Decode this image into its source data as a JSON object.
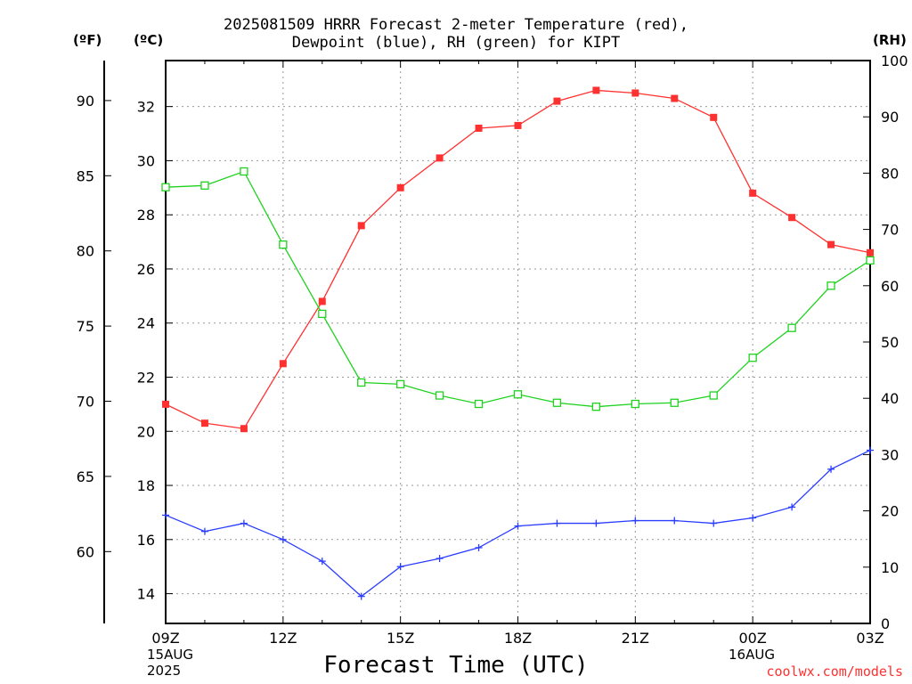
{
  "title_line1": "2025081509 HRRR Forecast 2-meter Temperature (red),",
  "title_line2": "Dewpoint (blue), RH (green) for KIPT",
  "units": {
    "fahrenheit": "(ºF)",
    "celsius": "(ºC)",
    "rh": "(RH)"
  },
  "x_date_labels": {
    "start_day": "15AUG",
    "start_year": "2025",
    "next_day": "16AUG"
  },
  "xlabel": "Forecast Time (UTC)",
  "credit": "coolwx.com/models",
  "colors": {
    "temperature": "#ff3030",
    "dewpoint": "#2a3cff",
    "rh": "#1ed21e",
    "grid": "#999999"
  },
  "chart_data": {
    "type": "line",
    "x": [
      "09Z",
      "10Z",
      "11Z",
      "12Z",
      "13Z",
      "14Z",
      "15Z",
      "16Z",
      "17Z",
      "18Z",
      "19Z",
      "20Z",
      "21Z",
      "22Z",
      "23Z",
      "00Z",
      "01Z",
      "02Z",
      "03Z"
    ],
    "x_tick_labels": [
      "09Z",
      "12Z",
      "15Z",
      "18Z",
      "21Z",
      "00Z",
      "03Z"
    ],
    "left_axis_celsius": {
      "ylim": [
        12.9,
        33.7
      ],
      "ticks": [
        14,
        16,
        18,
        20,
        22,
        24,
        26,
        28,
        30,
        32
      ]
    },
    "outer_axis_fahrenheit": {
      "ticks": [
        60,
        65,
        70,
        75,
        80,
        85,
        90
      ]
    },
    "right_axis_rh": {
      "ylim": [
        0,
        100
      ],
      "ticks": [
        0,
        10,
        20,
        30,
        40,
        50,
        60,
        70,
        80,
        90,
        100
      ]
    },
    "series": [
      {
        "name": "Temperature",
        "axis": "celsius",
        "marker": "filled-square",
        "values": [
          21.0,
          20.3,
          20.1,
          22.5,
          24.8,
          27.6,
          29.0,
          30.1,
          31.2,
          31.3,
          32.2,
          32.6,
          32.5,
          32.3,
          31.6,
          28.8,
          27.9,
          26.9,
          26.6
        ]
      },
      {
        "name": "Dewpoint",
        "axis": "celsius",
        "marker": "plus",
        "values": [
          16.9,
          16.3,
          16.6,
          16.0,
          15.2,
          13.9,
          15.0,
          15.3,
          15.7,
          16.5,
          16.6,
          16.6,
          16.7,
          16.7,
          16.6,
          16.8,
          17.2,
          18.6,
          19.3
        ]
      },
      {
        "name": "RH",
        "axis": "rh",
        "marker": "open-square",
        "values": [
          77.5,
          77.8,
          80.3,
          67.3,
          55.0,
          42.8,
          42.5,
          40.5,
          39.0,
          40.7,
          39.2,
          38.5,
          39.0,
          39.2,
          40.5,
          47.2,
          52.5,
          60.0,
          64.5
        ]
      }
    ]
  }
}
